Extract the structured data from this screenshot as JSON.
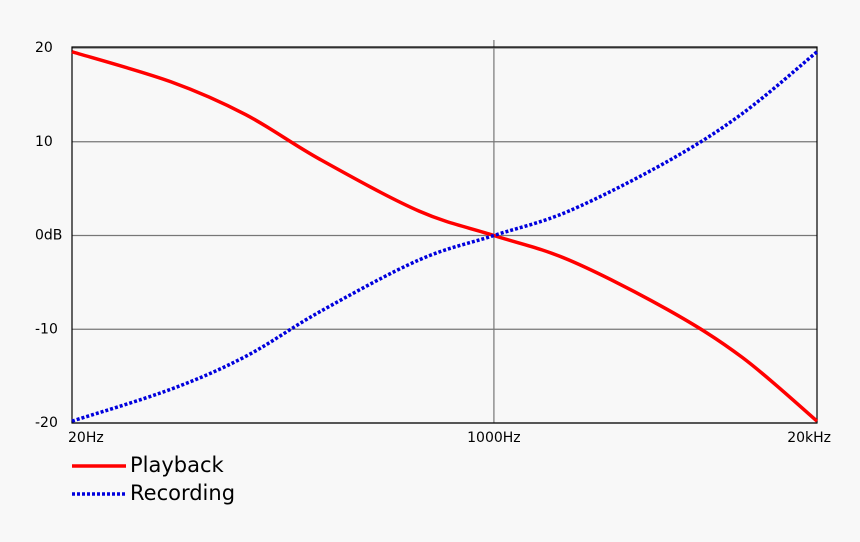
{
  "chart_data": {
    "type": "line",
    "x": [
      20,
      50,
      100,
      200,
      500,
      1000,
      2000,
      5000,
      10000,
      20000
    ],
    "series": [
      {
        "name": "Playback",
        "color": "#ff0000",
        "line_style": "solid",
        "values": [
          19.6,
          16.4,
          12.9,
          8.1,
          2.6,
          0,
          -2.6,
          -7.9,
          -13.0,
          -19.8
        ]
      },
      {
        "name": "Recording",
        "color": "#0000dd",
        "line_style": "dotted",
        "values": [
          -19.8,
          -16.4,
          -12.9,
          -8.1,
          -2.6,
          0,
          2.6,
          7.9,
          13.0,
          19.6
        ]
      }
    ],
    "xscale": "log",
    "xlim": [
      20,
      20000
    ],
    "xticks": [
      {
        "value": 20,
        "label": "20Hz"
      },
      {
        "value": 1000,
        "label": "1000Hz"
      },
      {
        "value": 20000,
        "label": "20kHz"
      }
    ],
    "ylim": [
      -20,
      20
    ],
    "yticks": [
      20,
      10,
      {
        "value": 0,
        "label": "0dB"
      },
      -10,
      -20
    ],
    "grid": true,
    "legend": "bottom-left"
  }
}
